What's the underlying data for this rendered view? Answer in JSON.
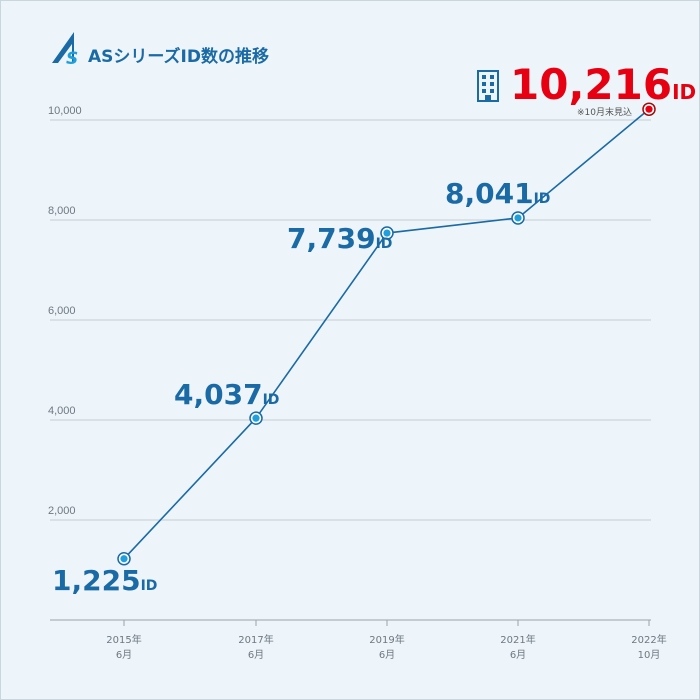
{
  "colors": {
    "accent": "#1a6aa5",
    "marker_fill": "#1fa0dc",
    "highlight": "#e60012",
    "grid": "#c8cdd2",
    "background": "#edf5fa"
  },
  "header": {
    "title": "ASシリーズID数の推移",
    "logo_icon": "as-logo-icon"
  },
  "note": "※10月末見込",
  "building_icon": "building-icon",
  "chart_data": {
    "type": "line",
    "title": "ASシリーズID数の推移",
    "xlabel": "",
    "ylabel": "",
    "ylim": [
      0,
      10000
    ],
    "yticks": [
      2000,
      4000,
      6000,
      8000,
      10000
    ],
    "ytick_labels": [
      "2,000",
      "4,000",
      "6,000",
      "8,000",
      "10,000"
    ],
    "categories": [
      {
        "year": "2015年",
        "month": "6月"
      },
      {
        "year": "2017年",
        "month": "6月"
      },
      {
        "year": "2019年",
        "month": "6月"
      },
      {
        "year": "2021年",
        "month": "6月"
      },
      {
        "year": "2022年",
        "month": "10月"
      }
    ],
    "series": [
      {
        "values": [
          1225,
          4037,
          7739,
          8041,
          10216
        ]
      }
    ],
    "value_labels": [
      "1,225",
      "4,037",
      "7,739",
      "8,041",
      "10,216"
    ],
    "unit_label": "ID",
    "grid": true,
    "legend": "none"
  }
}
